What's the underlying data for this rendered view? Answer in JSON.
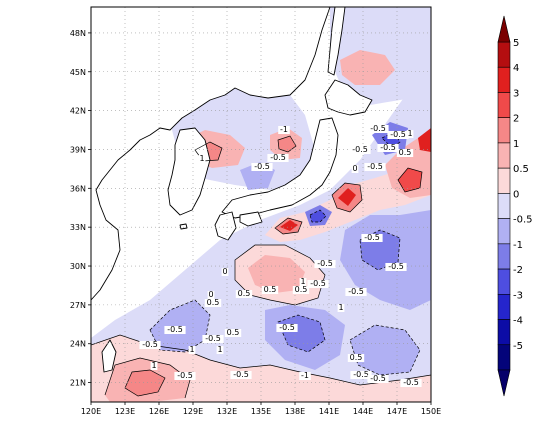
{
  "map": {
    "lon_labels": [
      "120E",
      "123E",
      "126E",
      "129E",
      "132E",
      "135E",
      "138E",
      "141E",
      "144E",
      "147E",
      "150E"
    ],
    "lat_labels": [
      "21N",
      "24N",
      "27N",
      "30N",
      "33N",
      "36N",
      "39N",
      "42N",
      "45N",
      "48N"
    ],
    "lon_range": [
      120,
      150
    ],
    "lat_range": [
      19.5,
      50
    ],
    "contour_labels": [
      "-0.5",
      "-0.5",
      "1",
      "-1",
      "-0.5",
      "-0.5",
      "-0.5",
      "-0.5",
      "1",
      "-0.5",
      "0",
      "0.5",
      "-0.5",
      "-0.5",
      "0",
      "0.5",
      "-0.5",
      "1",
      "-0.5",
      "0.5",
      "0",
      "-0.5",
      "-0.5",
      "-0.5",
      "1",
      "1",
      "0.5",
      "1",
      "-0.5",
      "-0.5",
      "-0.5",
      "-0.5",
      "0.5",
      "-0.5",
      "-0.5",
      "0.5",
      "-1",
      "-0.5",
      "1",
      "0.5"
    ]
  },
  "colorbar": {
    "levels": [
      "5",
      "4",
      "3",
      "2",
      "1",
      "0.5",
      "0",
      "-0.5",
      "-1",
      "-2",
      "-3",
      "-4",
      "-5"
    ],
    "colors": [
      "#b40e10",
      "#e0201f",
      "#f04a4a",
      "#f58787",
      "#f9b3b3",
      "#fcd9d9",
      "#dcdcf8",
      "#b0b0f3",
      "#7d7de8",
      "#4e4ee0",
      "#2525cc",
      "#0c0ca6",
      "#04047a"
    ]
  }
}
